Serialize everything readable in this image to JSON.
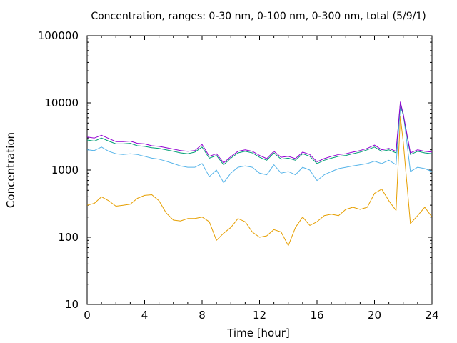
{
  "chart_data": {
    "type": "line",
    "title": "Concentration, ranges: 0-30 nm, 0-100 nm, 0-300 nm, total (5/9/1)",
    "xlabel": "Time [hour]",
    "ylabel": "Concentration",
    "xlim": [
      0,
      24
    ],
    "ylim": [
      10,
      100000
    ],
    "y_scale": "log",
    "x_ticks": [
      0,
      4,
      8,
      12,
      16,
      20,
      24
    ],
    "x_tick_labels": [
      "0",
      "4",
      "8",
      "12",
      "16",
      "20",
      "24"
    ],
    "y_ticks": [
      10,
      100,
      1000,
      10000,
      100000
    ],
    "y_tick_labels": [
      "10",
      "100",
      "1000",
      "10000",
      "100000"
    ],
    "grid": false,
    "legend": "none",
    "series": [
      {
        "color": "#e69f00",
        "x": [
          0,
          0.5,
          1,
          1.5,
          2,
          2.5,
          3,
          3.5,
          4,
          4.5,
          5,
          5.5,
          6,
          6.5,
          7,
          7.5,
          8,
          8.5,
          9,
          9.5,
          10,
          10.5,
          11,
          11.5,
          12,
          12.5,
          13,
          13.5,
          14,
          14.5,
          15,
          15.5,
          16,
          16.5,
          17,
          17.5,
          18,
          18.5,
          19,
          19.5,
          20,
          20.5,
          21,
          21.5,
          21.8,
          22,
          22.5,
          23,
          23.5,
          24
        ],
        "values": [
          300,
          320,
          400,
          350,
          290,
          300,
          310,
          380,
          420,
          430,
          350,
          230,
          180,
          175,
          190,
          190,
          200,
          170,
          90,
          115,
          140,
          190,
          170,
          120,
          100,
          105,
          130,
          120,
          75,
          140,
          200,
          150,
          170,
          210,
          220,
          210,
          260,
          280,
          260,
          280,
          450,
          520,
          350,
          250,
          6200,
          2600,
          160,
          210,
          280,
          200
        ]
      },
      {
        "color": "#56b4e9",
        "x": [
          0,
          0.5,
          1,
          1.5,
          2,
          2.5,
          3,
          3.5,
          4,
          4.5,
          5,
          5.5,
          6,
          6.5,
          7,
          7.5,
          8,
          8.5,
          9,
          9.5,
          10,
          10.5,
          11,
          11.5,
          12,
          12.5,
          13,
          13.5,
          14,
          14.5,
          15,
          15.5,
          16,
          16.5,
          17,
          17.5,
          18,
          18.5,
          19,
          19.5,
          20,
          20.5,
          21,
          21.5,
          21.8,
          22,
          22.5,
          23,
          23.5,
          24
        ],
        "values": [
          2000,
          1950,
          2200,
          1900,
          1750,
          1700,
          1750,
          1700,
          1600,
          1500,
          1450,
          1350,
          1250,
          1150,
          1100,
          1100,
          1250,
          800,
          1000,
          650,
          900,
          1100,
          1150,
          1100,
          900,
          850,
          1200,
          900,
          950,
          850,
          1100,
          1000,
          700,
          850,
          950,
          1050,
          1100,
          1150,
          1200,
          1250,
          1350,
          1250,
          1400,
          1200,
          8500,
          7000,
          950,
          1100,
          1050,
          950
        ]
      },
      {
        "color": "#009e73",
        "x": [
          0,
          0.5,
          1,
          1.5,
          2,
          2.5,
          3,
          3.5,
          4,
          4.5,
          5,
          5.5,
          6,
          6.5,
          7,
          7.5,
          8,
          8.5,
          9,
          9.5,
          10,
          10.5,
          11,
          11.5,
          12,
          12.5,
          13,
          13.5,
          14,
          14.5,
          15,
          15.5,
          16,
          16.5,
          17,
          17.5,
          18,
          18.5,
          19,
          19.5,
          20,
          20.5,
          21,
          21.5,
          21.8,
          22,
          22.5,
          23,
          23.5,
          24
        ],
        "values": [
          2800,
          2700,
          3000,
          2700,
          2450,
          2450,
          2500,
          2300,
          2250,
          2150,
          2100,
          2000,
          1900,
          1800,
          1750,
          1850,
          2200,
          1500,
          1650,
          1200,
          1500,
          1800,
          1900,
          1800,
          1550,
          1400,
          1800,
          1450,
          1500,
          1400,
          1750,
          1600,
          1250,
          1400,
          1500,
          1600,
          1650,
          1750,
          1850,
          2000,
          2200,
          1900,
          2000,
          1800,
          9800,
          6500,
          1700,
          1900,
          1800,
          1750
        ]
      },
      {
        "color": "#9400d3",
        "x": [
          0,
          0.5,
          1,
          1.5,
          2,
          2.5,
          3,
          3.5,
          4,
          4.5,
          5,
          5.5,
          6,
          6.5,
          7,
          7.5,
          8,
          8.5,
          9,
          9.5,
          10,
          10.5,
          11,
          11.5,
          12,
          12.5,
          13,
          13.5,
          14,
          14.5,
          15,
          15.5,
          16,
          16.5,
          17,
          17.5,
          18,
          18.5,
          19,
          19.5,
          20,
          20.5,
          21,
          21.5,
          21.8,
          22,
          22.5,
          23,
          23.5,
          24
        ],
        "values": [
          3100,
          3000,
          3300,
          2950,
          2650,
          2650,
          2700,
          2500,
          2450,
          2300,
          2250,
          2150,
          2050,
          1950,
          1900,
          1950,
          2400,
          1600,
          1750,
          1280,
          1580,
          1900,
          2000,
          1900,
          1650,
          1480,
          1900,
          1550,
          1600,
          1480,
          1850,
          1700,
          1330,
          1480,
          1600,
          1700,
          1750,
          1850,
          1950,
          2100,
          2350,
          2000,
          2100,
          1900,
          10300,
          6800,
          1800,
          2000,
          1900,
          1850
        ]
      }
    ]
  }
}
